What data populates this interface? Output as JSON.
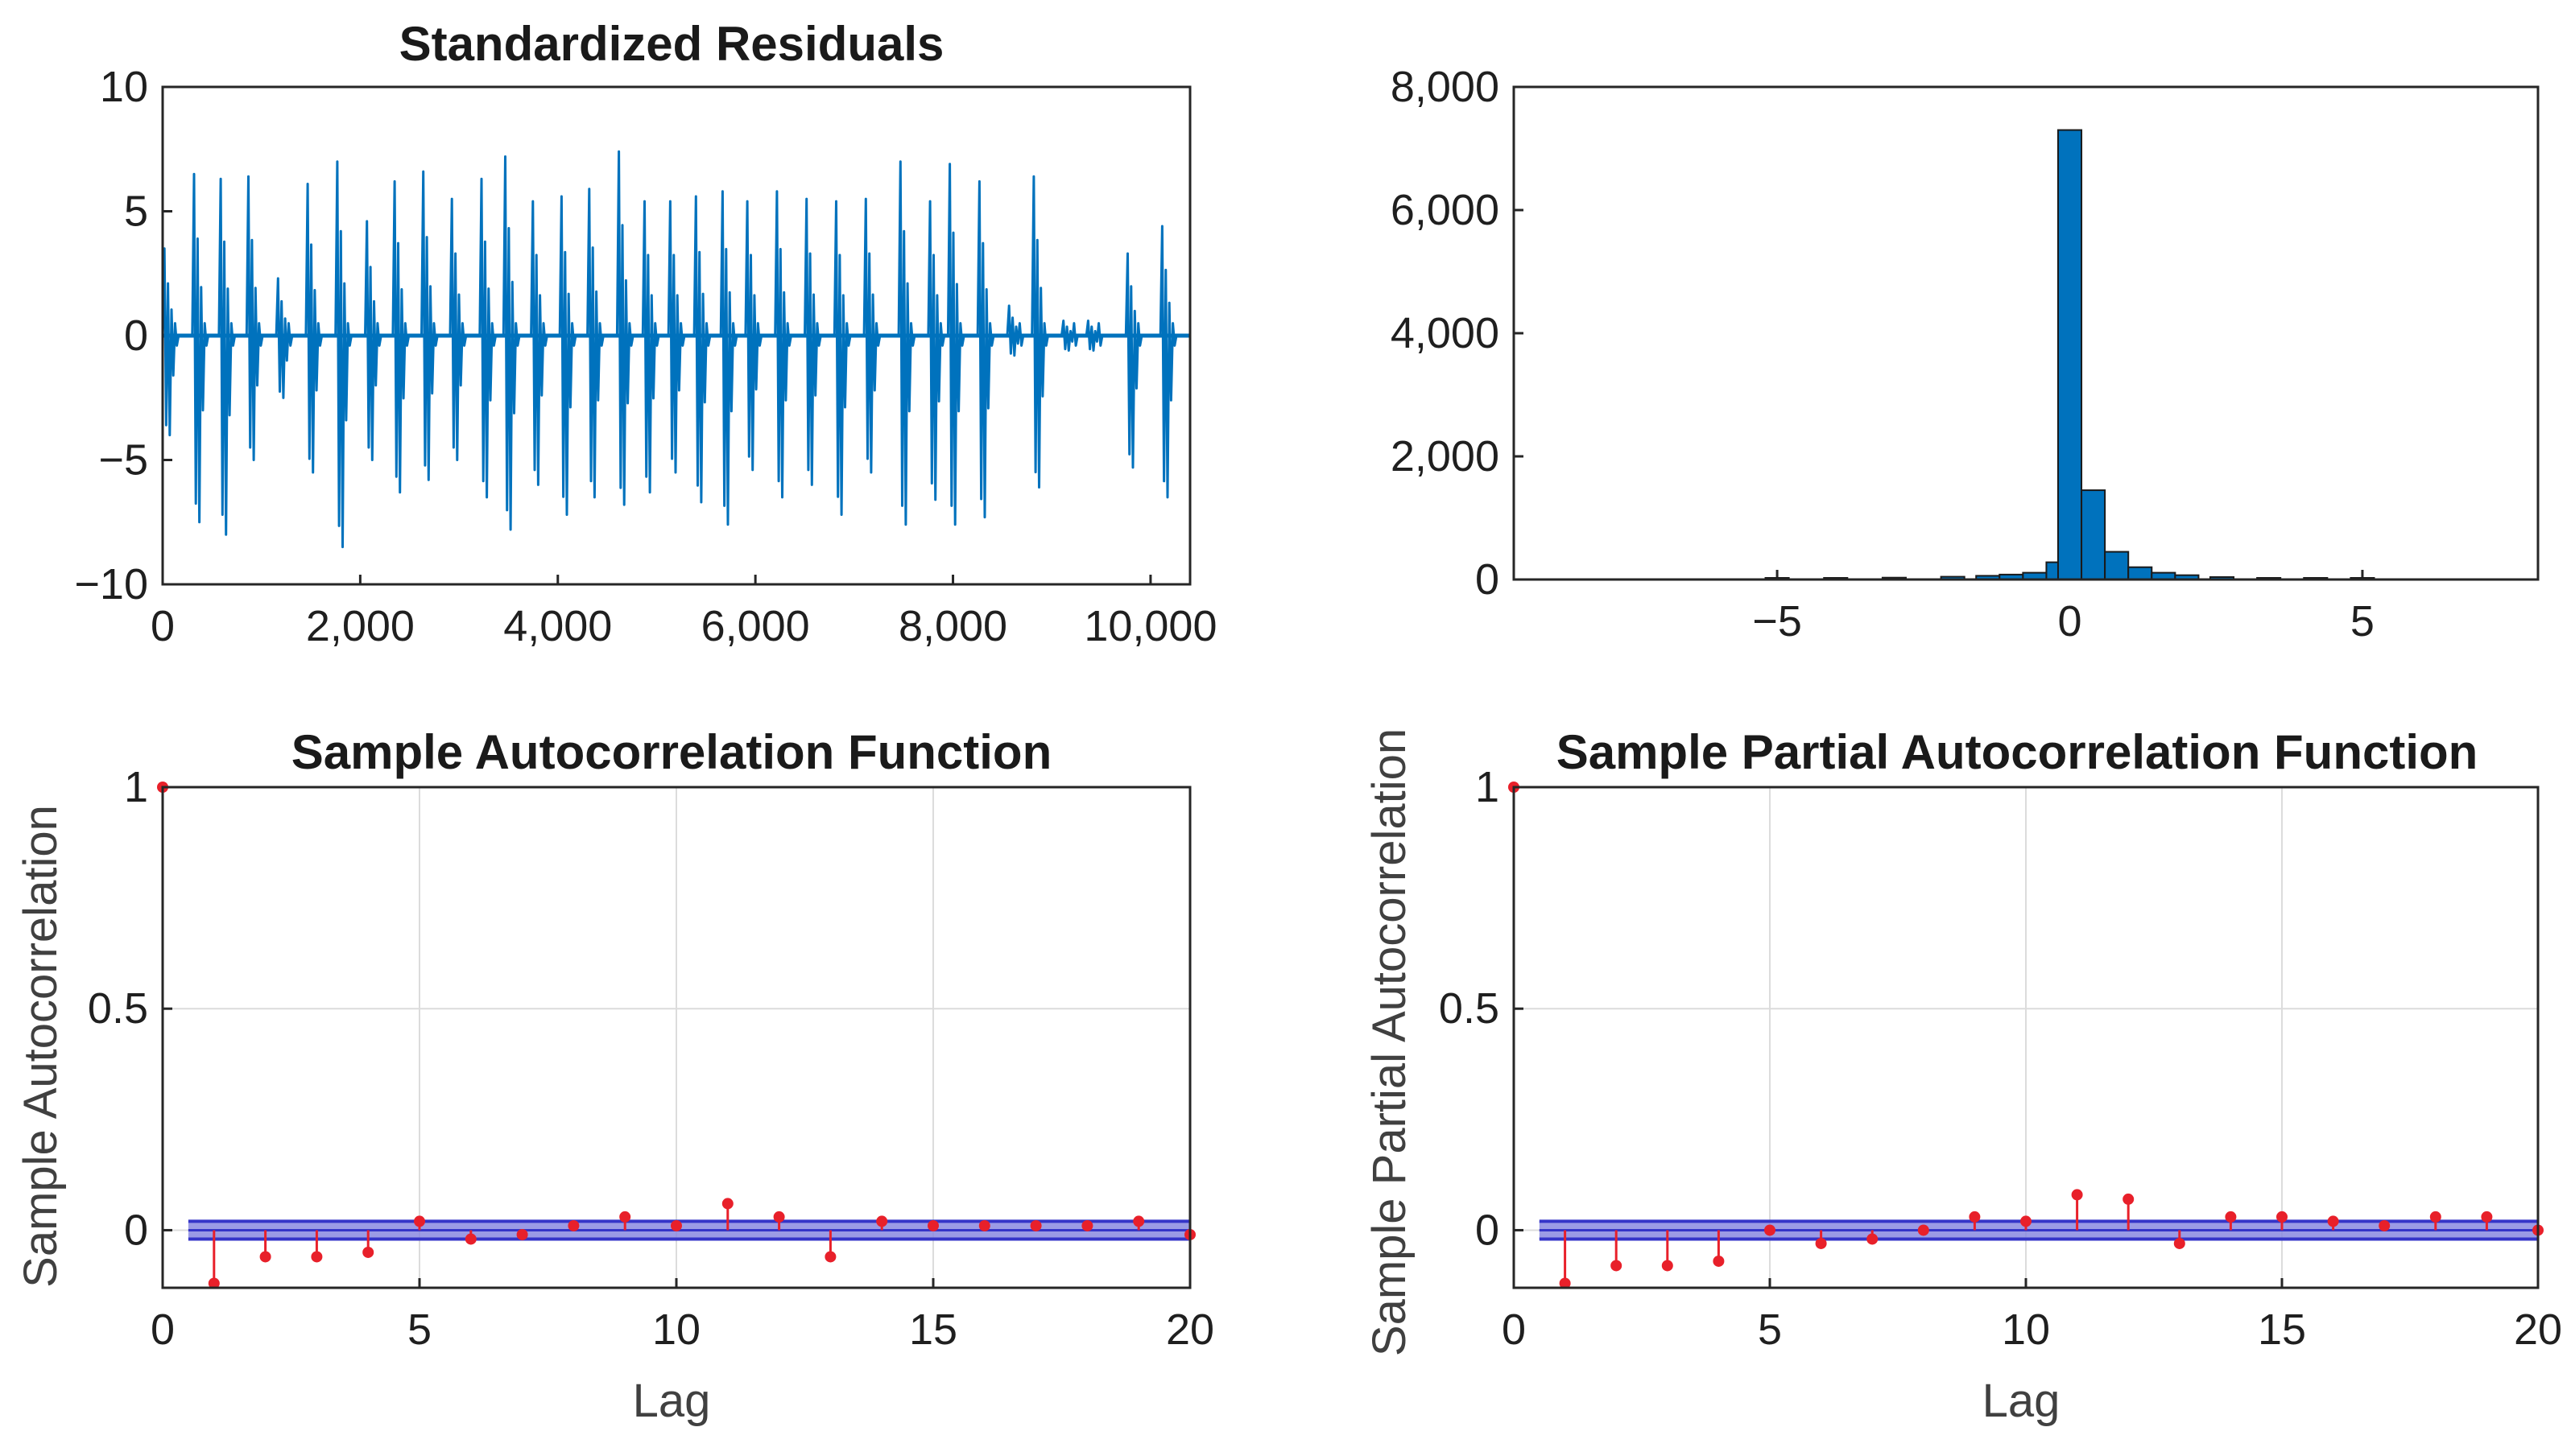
{
  "chart_data": [
    {
      "type": "line",
      "title": "Standardized Residuals",
      "xlabel": "",
      "ylabel": "",
      "xlim": [
        0,
        10400
      ],
      "ylim": [
        -10,
        10
      ],
      "x_ticks": [
        0,
        2000,
        4000,
        6000,
        8000,
        10000
      ],
      "x_tick_labels": [
        "0",
        "2,000",
        "4,000",
        "6,000",
        "8,000",
        "10,000"
      ],
      "y_ticks": [
        10,
        5,
        0,
        -5,
        -10
      ],
      "y_tick_labels": [
        "10",
        "5",
        "0",
        "−5",
        "−10"
      ],
      "grid": false,
      "color": "#0072BD",
      "bursts": [
        {
          "x": 0,
          "max": 3.5,
          "min": -4
        },
        {
          "x": 300,
          "max": 6.5,
          "min": -7.5
        },
        {
          "x": 570,
          "max": 6.3,
          "min": -8
        },
        {
          "x": 850,
          "max": 6.4,
          "min": -5
        },
        {
          "x": 1150,
          "max": 2.3,
          "min": -2.5
        },
        {
          "x": 1450,
          "max": 6.1,
          "min": -5.5
        },
        {
          "x": 1750,
          "max": 7,
          "min": -8.5
        },
        {
          "x": 2050,
          "max": 4.6,
          "min": -5
        },
        {
          "x": 2330,
          "max": 6.2,
          "min": -6.3
        },
        {
          "x": 2620,
          "max": 6.6,
          "min": -5.8
        },
        {
          "x": 2910,
          "max": 5.5,
          "min": -5
        },
        {
          "x": 3210,
          "max": 6.3,
          "min": -6.5
        },
        {
          "x": 3450,
          "max": 7.2,
          "min": -7.8
        },
        {
          "x": 3730,
          "max": 5.4,
          "min": -6
        },
        {
          "x": 4020,
          "max": 5.6,
          "min": -7.2
        },
        {
          "x": 4300,
          "max": 5.9,
          "min": -6.5
        },
        {
          "x": 4600,
          "max": 7.4,
          "min": -6.8
        },
        {
          "x": 4860,
          "max": 5.4,
          "min": -6.3
        },
        {
          "x": 5120,
          "max": 5.4,
          "min": -5.5
        },
        {
          "x": 5380,
          "max": 5.6,
          "min": -6.7
        },
        {
          "x": 5650,
          "max": 5.8,
          "min": -7.6
        },
        {
          "x": 5900,
          "max": 5.4,
          "min": -5.4
        },
        {
          "x": 6200,
          "max": 5.8,
          "min": -6.5
        },
        {
          "x": 6500,
          "max": 5.5,
          "min": -6
        },
        {
          "x": 6800,
          "max": 5.4,
          "min": -7.2
        },
        {
          "x": 7100,
          "max": 5.5,
          "min": -5.5
        },
        {
          "x": 7450,
          "max": 7,
          "min": -7.6
        },
        {
          "x": 7750,
          "max": 5.4,
          "min": -6.6
        },
        {
          "x": 7950,
          "max": 6.9,
          "min": -7.6
        },
        {
          "x": 8250,
          "max": 6.2,
          "min": -7.3
        },
        {
          "x": 8550,
          "max": 1.2,
          "min": -0.8
        },
        {
          "x": 8800,
          "max": 6.4,
          "min": -6.1
        },
        {
          "x": 9100,
          "max": 0.6,
          "min": -0.6
        },
        {
          "x": 9350,
          "max": 0.6,
          "min": -0.6
        },
        {
          "x": 9750,
          "max": 3.3,
          "min": -5.3
        },
        {
          "x": 10100,
          "max": 4.4,
          "min": -6.5
        }
      ]
    },
    {
      "type": "bar",
      "title": "",
      "xlabel": "",
      "ylabel": "",
      "xlim": [
        -9.5,
        8
      ],
      "ylim": [
        0,
        8000
      ],
      "x_ticks": [
        -5,
        0,
        5
      ],
      "x_tick_labels": [
        "−5",
        "0",
        "5"
      ],
      "y_ticks": [
        0,
        2000,
        4000,
        6000,
        8000
      ],
      "y_tick_labels": [
        "0",
        "2,000",
        "4,000",
        "6,000",
        "8,000"
      ],
      "grid": false,
      "color": "#0072BD",
      "bin_width": 0.4,
      "bins": [
        {
          "center": -5,
          "count": 15
        },
        {
          "center": -4,
          "count": 20
        },
        {
          "center": -3,
          "count": 30
        },
        {
          "center": -2,
          "count": 45
        },
        {
          "center": -1.4,
          "count": 60
        },
        {
          "center": -1,
          "count": 80
        },
        {
          "center": -0.6,
          "count": 110
        },
        {
          "center": -0.2,
          "count": 280
        },
        {
          "center": 0.0,
          "count": 7300
        },
        {
          "center": 0.4,
          "count": 1450
        },
        {
          "center": 0.8,
          "count": 450
        },
        {
          "center": 1.2,
          "count": 200
        },
        {
          "center": 1.6,
          "count": 110
        },
        {
          "center": 2.0,
          "count": 70
        },
        {
          "center": 2.6,
          "count": 40
        },
        {
          "center": 3.4,
          "count": 25
        },
        {
          "center": 4.2,
          "count": 15
        },
        {
          "center": 5.0,
          "count": 10
        }
      ]
    },
    {
      "type": "stem",
      "title": "Sample Autocorrelation Function",
      "xlabel": "Lag",
      "ylabel": "Sample Autocorrelation",
      "xlim": [
        0,
        20
      ],
      "ylim": [
        -0.13,
        1
      ],
      "x_ticks": [
        0,
        5,
        10,
        15,
        20
      ],
      "x_tick_labels": [
        "0",
        "5",
        "10",
        "15",
        "20"
      ],
      "y_ticks": [
        1,
        0.5,
        0
      ],
      "y_tick_labels": [
        "1",
        "0.5",
        "0"
      ],
      "grid": true,
      "confidence_bound": 0.02,
      "lags": [
        0,
        1,
        2,
        3,
        4,
        5,
        6,
        7,
        8,
        9,
        10,
        11,
        12,
        13,
        14,
        15,
        16,
        17,
        18,
        19,
        20
      ],
      "values": [
        1,
        -0.12,
        -0.06,
        -0.06,
        -0.05,
        0.02,
        -0.02,
        -0.01,
        0.01,
        0.03,
        0.01,
        0.06,
        0.03,
        -0.06,
        0.02,
        0.01,
        0.01,
        0.01,
        0.01,
        0.02,
        -0.01
      ]
    },
    {
      "type": "stem",
      "title": "Sample Partial Autocorrelation Function",
      "xlabel": "Lag",
      "ylabel": "Sample Partial Autocorrelation",
      "xlim": [
        0,
        20
      ],
      "ylim": [
        -0.13,
        1
      ],
      "x_ticks": [
        0,
        5,
        10,
        15,
        20
      ],
      "x_tick_labels": [
        "0",
        "5",
        "10",
        "15",
        "20"
      ],
      "y_ticks": [
        1,
        0.5,
        0
      ],
      "y_tick_labels": [
        "1",
        "0.5",
        "0"
      ],
      "grid": true,
      "confidence_bound": 0.02,
      "lags": [
        0,
        1,
        2,
        3,
        4,
        5,
        6,
        7,
        8,
        9,
        10,
        11,
        12,
        13,
        14,
        15,
        16,
        17,
        18,
        19,
        20
      ],
      "values": [
        1,
        -0.12,
        -0.08,
        -0.08,
        -0.07,
        0.0,
        -0.03,
        -0.02,
        0.0,
        0.03,
        0.02,
        0.08,
        0.07,
        -0.03,
        0.03,
        0.03,
        0.02,
        0.01,
        0.03,
        0.03,
        0.0
      ]
    }
  ],
  "colors": {
    "residual_line": "#0072BD",
    "histogram_bar": "#0072BD",
    "stem": "#e8202a",
    "confidence_band": "#8a8ae0",
    "confidence_line": "#3535c8"
  }
}
